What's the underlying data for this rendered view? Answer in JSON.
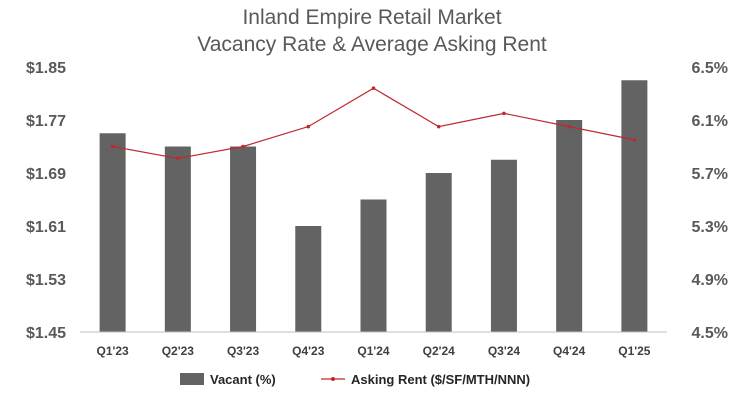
{
  "chart_data": {
    "type": "bar",
    "title": "Inland Empire Retail Market",
    "subtitle": "Vacancy Rate & Average Asking Rent",
    "categories": [
      "Q1'23",
      "Q2'23",
      "Q3'23",
      "Q4'23",
      "Q1'24",
      "Q2'24",
      "Q3'24",
      "Q4'24",
      "Q1'25"
    ],
    "left_axis": {
      "ticks": [
        "$1.85",
        "$1.77",
        "$1.69",
        "$1.61",
        "$1.53",
        "$1.45"
      ],
      "range": [
        1.45,
        1.85
      ]
    },
    "right_axis": {
      "ticks": [
        "6.5%",
        "6.1%",
        "5.7%",
        "5.3%",
        "4.9%",
        "4.5%"
      ],
      "range": [
        4.5,
        6.5
      ]
    },
    "series": [
      {
        "name": "Vacant (%)",
        "type": "bar",
        "axis": "left",
        "color": "#636363",
        "values": [
          1.75,
          1.73,
          1.73,
          1.61,
          1.65,
          1.69,
          1.71,
          1.77,
          1.83
        ]
      },
      {
        "name": "Asking Rent ($/SF/MTH/NNN)",
        "type": "line",
        "axis": "right",
        "color": "#c0282d",
        "values": [
          5.9,
          5.81,
          5.9,
          6.05,
          6.34,
          6.05,
          6.15,
          6.05,
          5.95
        ]
      }
    ],
    "grid": false,
    "legend_position": "bottom"
  }
}
